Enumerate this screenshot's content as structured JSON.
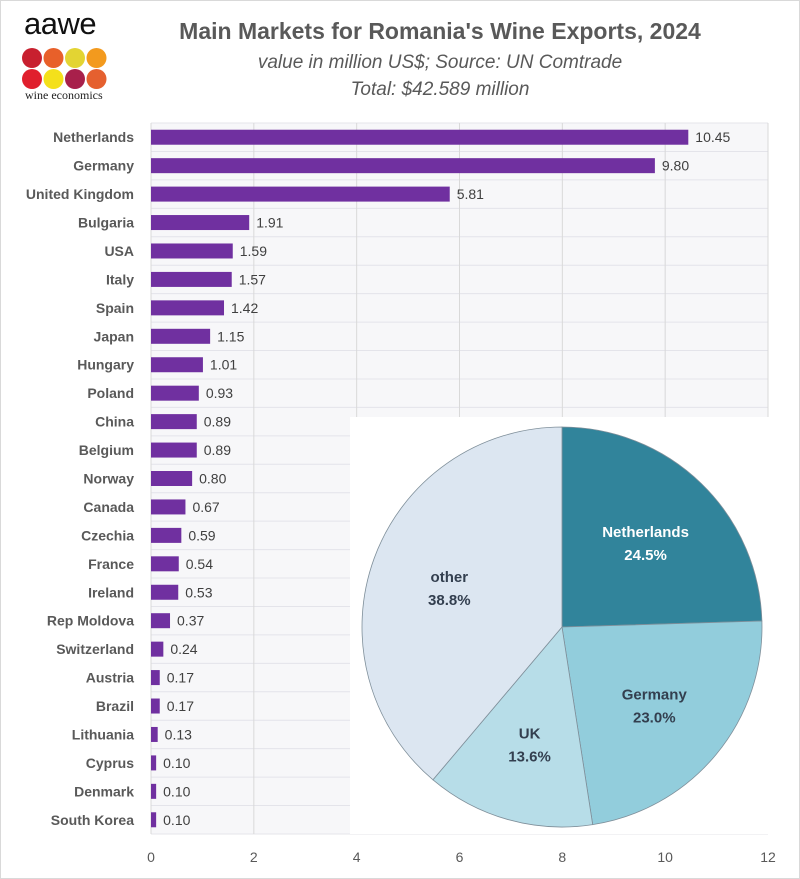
{
  "logo": {
    "word": "aawe",
    "subtitle": "wine economics",
    "dot_colors": [
      "#c8202f",
      "#e8602a",
      "#e3d433",
      "#f39a1e",
      "#e01f2d",
      "#f4e01b",
      "#a8204b",
      "#e5602f"
    ]
  },
  "chart_data": [
    {
      "type": "bar",
      "orientation": "horizontal",
      "title": "Main Markets for Romania's Wine Exports, 2024",
      "subtitle": "value in million US$; Source: UN Comtrade",
      "total_label": "Total: $42.589 million",
      "categories": [
        "Netherlands",
        "Germany",
        "United Kingdom",
        "Bulgaria",
        "USA",
        "Italy",
        "Spain",
        "Japan",
        "Hungary",
        "Poland",
        "China",
        "Belgium",
        "Norway",
        "Canada",
        "Czechia",
        "France",
        "Ireland",
        "Rep Moldova",
        "Switzerland",
        "Austria",
        "Brazil",
        "Lithuania",
        "Cyprus",
        "Denmark",
        "South Korea"
      ],
      "values": [
        10.45,
        9.8,
        5.81,
        1.91,
        1.59,
        1.57,
        1.42,
        1.15,
        1.01,
        0.93,
        0.89,
        0.89,
        0.8,
        0.67,
        0.59,
        0.54,
        0.53,
        0.37,
        0.24,
        0.17,
        0.17,
        0.13,
        0.1,
        0.1,
        0.1
      ],
      "value_labels": [
        "10.45",
        "9.80",
        "5.81",
        "1.91",
        "1.59",
        "1.57",
        "1.42",
        "1.15",
        "1.01",
        "0.93",
        "0.89",
        "0.89",
        "0.80",
        "0.67",
        "0.59",
        "0.54",
        "0.53",
        "0.37",
        "0.24",
        "0.17",
        "0.17",
        "0.13",
        "0.10",
        "0.10",
        "0.10"
      ],
      "xlim": [
        0,
        12
      ],
      "xticks": [
        "0",
        "2",
        "4",
        "6",
        "8",
        "10",
        "12"
      ],
      "grid": true,
      "bar_color": "#7030a0"
    },
    {
      "type": "pie",
      "slices": [
        {
          "label": "Netherlands",
          "value": 24.5,
          "pct_label": "24.5%",
          "color": "#31849b",
          "text_color": "#ffffff"
        },
        {
          "label": "Germany",
          "value": 23.0,
          "pct_label": "23.0%",
          "color": "#92cddc",
          "text_color": "#333f4f"
        },
        {
          "label": "UK",
          "value": 13.6,
          "pct_label": "13.6%",
          "color": "#b7dde8",
          "text_color": "#333f4f"
        },
        {
          "label": "other",
          "value": 38.8,
          "pct_label": "38.8%",
          "color": "#dce6f1",
          "text_color": "#333f4f"
        }
      ]
    }
  ]
}
